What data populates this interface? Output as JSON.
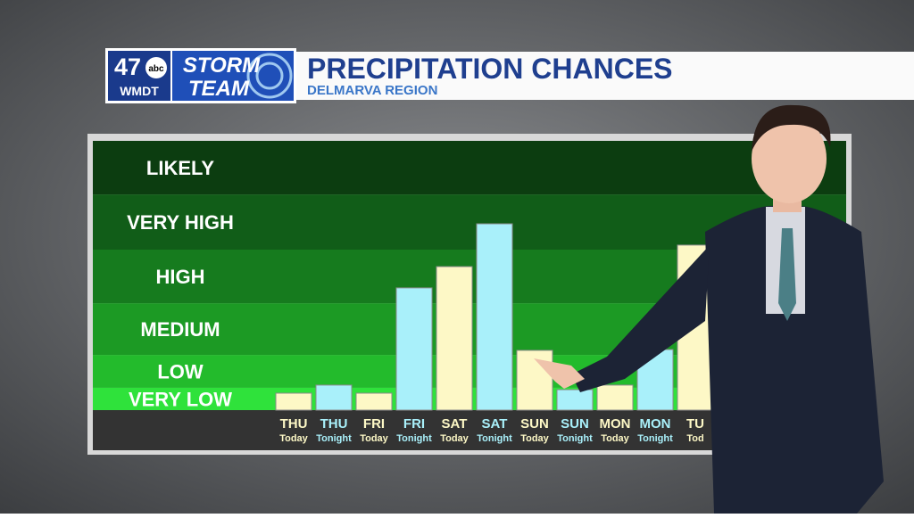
{
  "header": {
    "logo_number": "47",
    "logo_network": "abc",
    "logo_station": "WMDT",
    "brand_line1": "STORM",
    "brand_line2": "TEAM",
    "title": "PRECIPITATION CHANCES",
    "subtitle": "DELMARVA REGION"
  },
  "chart_data": {
    "type": "bar",
    "ylim": [
      0,
      100
    ],
    "bands": [
      {
        "label": "VERY LOW",
        "from": 0,
        "to": 8.3,
        "color": "#2fe23b"
      },
      {
        "label": "LOW",
        "from": 8.3,
        "to": 20.5,
        "color": "#23bb2c"
      },
      {
        "label": "MEDIUM",
        "from": 20.5,
        "to": 39.7,
        "color": "#1c9a24"
      },
      {
        "label": "HIGH",
        "from": 39.7,
        "to": 59.6,
        "color": "#167b1e"
      },
      {
        "label": "VERY HIGH",
        "from": 59.6,
        "to": 80.1,
        "color": "#115d18"
      },
      {
        "label": "LIKELY",
        "from": 80.1,
        "to": 100,
        "color": "#0c3d10"
      }
    ],
    "categories": [
      "THU",
      "THU",
      "FRI",
      "FRI",
      "SAT",
      "SAT",
      "SUN",
      "SUN",
      "MON",
      "MON",
      "TU"
    ],
    "periods": [
      "Today",
      "Tonight",
      "Today",
      "Tonight",
      "Today",
      "Tonight",
      "Today",
      "Tonight",
      "Today",
      "Tonight",
      "Tod"
    ],
    "values": [
      6.3,
      9.3,
      6.3,
      45.4,
      53.3,
      69.2,
      22.2,
      7.6,
      9.3,
      22.5,
      61.3
    ],
    "colors": [
      "#fdf8c6",
      "#a9f0fa",
      "#fdf8c6",
      "#a9f0fa",
      "#fdf8c6",
      "#a9f0fa",
      "#fdf8c6",
      "#a9f0fa",
      "#fdf8c6",
      "#a9f0fa",
      "#fdf8c6"
    ]
  }
}
